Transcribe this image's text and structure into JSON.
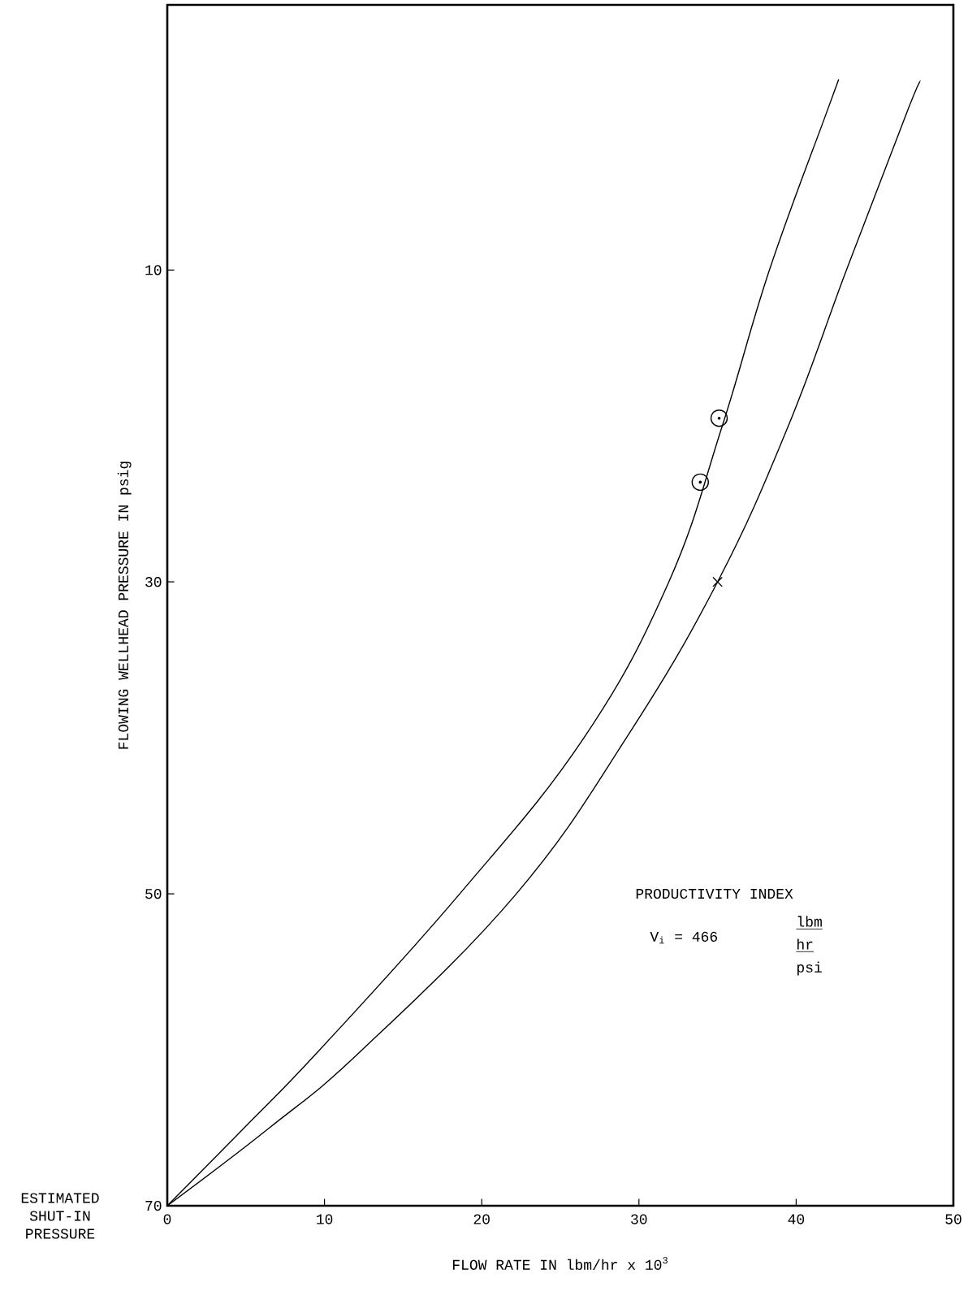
{
  "chart_data": {
    "type": "line",
    "xlabel": "FLOW RATE IN lbm/hr x 10$^{3}$",
    "ylabel": "FLOWING WELLHEAD PRESSURE IN psig",
    "xlim": [
      0,
      50
    ],
    "ylim": [
      70,
      -7
    ],
    "xticks": [
      0,
      10,
      20,
      30,
      40,
      50
    ],
    "yticks": [
      10,
      30,
      50,
      70
    ],
    "series": [
      {
        "color": "#000000",
        "x": [
          0,
          4.9,
          9.7,
          18.6,
          26.5,
          31.9,
          35.3,
          38.3,
          41.9,
          42.7
        ],
        "values": [
          70,
          65,
          60,
          50,
          40,
          30,
          20,
          10,
          0,
          -2.2
        ]
      },
      {
        "color": "#000000",
        "x": [
          0,
          6.5,
          12.4,
          22.2,
          29.2,
          35.0,
          39.5,
          43.2,
          47.0,
          47.9
        ],
        "values": [
          70,
          65,
          60,
          50,
          40,
          30,
          20,
          10,
          0,
          -2.1
        ]
      },
      {
        "type": "scatter",
        "marker": "circle",
        "color": "#000000",
        "x": [
          35.1,
          33.9
        ],
        "values": [
          19.5,
          23.6
        ]
      },
      {
        "type": "scatter",
        "marker": "cross",
        "color": "#000000",
        "x": [
          35.0
        ],
        "values": [
          30
        ]
      }
    ],
    "annotations": [
      "ESTIMATED SHUT-IN PRESSURE",
      "PRODUCTIVITY INDEX",
      "V$_{i}$ = 466",
      "lbm",
      "hr",
      "psi"
    ]
  }
}
